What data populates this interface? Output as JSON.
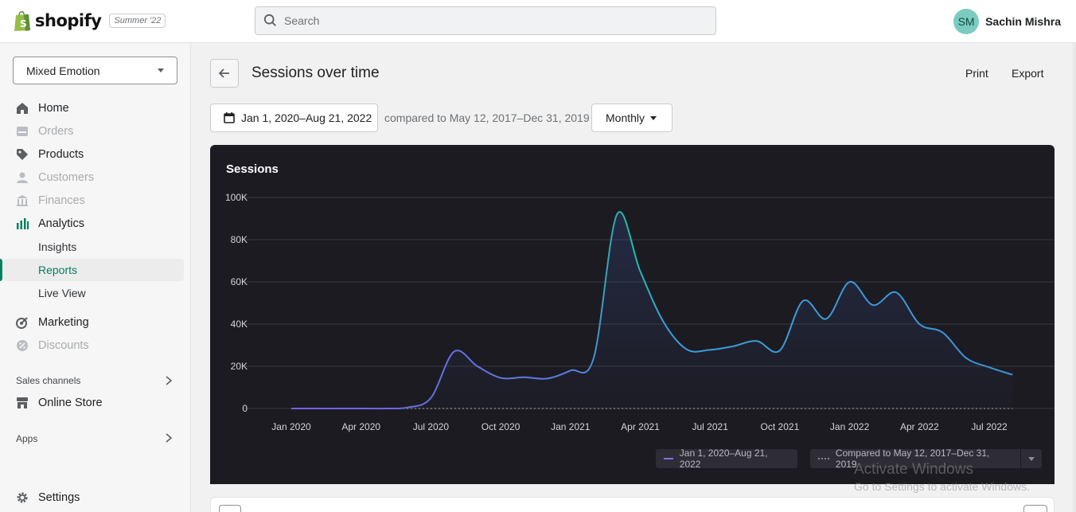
{
  "topbar": {
    "brand": "shopify",
    "edition": "Summer '22",
    "search_placeholder": "Search",
    "user_initials": "SM",
    "user_name": "Sachin Mishra"
  },
  "sidebar": {
    "store_name": "Mixed Emotion",
    "items": [
      {
        "label": "Home",
        "icon": "home-icon"
      },
      {
        "label": "Orders",
        "icon": "orders-icon"
      },
      {
        "label": "Products",
        "icon": "tag-icon"
      },
      {
        "label": "Customers",
        "icon": "person-icon"
      },
      {
        "label": "Finances",
        "icon": "bank-icon"
      },
      {
        "label": "Analytics",
        "icon": "bar-chart-icon"
      },
      {
        "label": "Marketing",
        "icon": "target-icon"
      },
      {
        "label": "Discounts",
        "icon": "discount-icon"
      }
    ],
    "analytics_sub": [
      "Insights",
      "Reports",
      "Live View"
    ],
    "sales_channels_label": "Sales channels",
    "online_store": "Online Store",
    "apps_label": "Apps",
    "settings": "Settings"
  },
  "page": {
    "title": "Sessions over time",
    "print": "Print",
    "export": "Export",
    "date_range": "Jan 1, 2020–Aug 21, 2022",
    "compare_text": "compared to May 12, 2017–Dec 31, 2019",
    "interval": "Monthly"
  },
  "chart_data": {
    "type": "line",
    "title": "Sessions",
    "y_ticks": [
      "100K",
      "80K",
      "60K",
      "40K",
      "20K",
      "0"
    ],
    "ylim": [
      0,
      100000
    ],
    "x_ticks": [
      "Jan 2020",
      "Apr 2020",
      "Jul 2020",
      "Oct 2020",
      "Jan 2021",
      "Apr 2021",
      "Jul 2021",
      "Oct 2021",
      "Jan 2022",
      "Apr 2022",
      "Jul 2022"
    ],
    "grid": true,
    "series": [
      {
        "name": "Jan 1, 2020–Aug 21, 2022",
        "color": "#6b63d8",
        "x": [
          "2020-01",
          "2020-02",
          "2020-03",
          "2020-04",
          "2020-05",
          "2020-06",
          "2020-07",
          "2020-08",
          "2020-09",
          "2020-10",
          "2020-11",
          "2020-12",
          "2021-01",
          "2021-02",
          "2021-03",
          "2021-04",
          "2021-05",
          "2021-06",
          "2021-07",
          "2021-08",
          "2021-09",
          "2021-10",
          "2021-11",
          "2021-12",
          "2022-01",
          "2022-02",
          "2022-03",
          "2022-04",
          "2022-05",
          "2022-06",
          "2022-07",
          "2022-08"
        ],
        "values": [
          0,
          0,
          0,
          0,
          0,
          500,
          5000,
          27000,
          20000,
          14500,
          14800,
          14200,
          18000,
          24000,
          92000,
          65000,
          41000,
          28000,
          27800,
          29500,
          32000,
          27500,
          51000,
          42500,
          60000,
          49000,
          55000,
          40000,
          36000,
          24000,
          19500,
          16000
        ]
      },
      {
        "name": "Compared to May 12, 2017–Dec 31, 2019",
        "color": "#8a8a95",
        "values": []
      }
    ]
  },
  "watermark": {
    "line1": "Activate Windows",
    "line2": "Go to Settings to activate Windows."
  }
}
